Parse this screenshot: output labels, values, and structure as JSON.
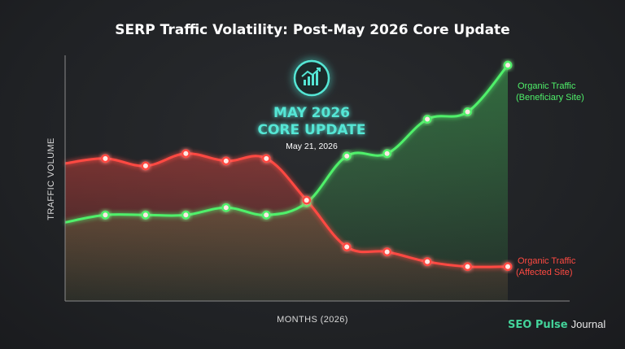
{
  "chart_data": {
    "type": "area",
    "title": "SERP Traffic Volatility: Post-May 2026 Core Update",
    "xlabel": "MONTHS (2026)",
    "ylabel": "TRAFFIC VOLUME",
    "grid": false,
    "x": [
      0,
      1,
      2,
      3,
      4,
      5,
      6,
      7,
      8,
      9,
      10,
      11
    ],
    "xlim": [
      0,
      11
    ],
    "ylim": [
      0,
      100
    ],
    "series": [
      {
        "name": "Organic Traffic (Beneficiary Site)",
        "label_lines": [
          "Organic Traffic",
          "(Beneficiary Site)"
        ],
        "color": "#4ff06a",
        "marker_from": 1,
        "values": [
          32,
          35,
          35,
          35,
          38,
          35,
          40,
          59,
          60,
          74,
          77,
          96
        ]
      },
      {
        "name": "Organic Traffic (Affected Site)",
        "label_lines": [
          "Organic Traffic",
          "(Affected Site)"
        ],
        "color": "#ff4a42",
        "marker_from": 1,
        "values": [
          56,
          58,
          55,
          60,
          57,
          58,
          41,
          22,
          20,
          16,
          14,
          14
        ]
      }
    ],
    "event": {
      "x": 6,
      "title_lines": [
        "MAY 2026",
        "CORE UPDATE"
      ],
      "date": "May 21, 2026",
      "icon": "trending-up-chart-icon",
      "color": "#55e6d5"
    }
  },
  "branding": {
    "part1": "SEO Pulse",
    "part2": "Journal"
  }
}
